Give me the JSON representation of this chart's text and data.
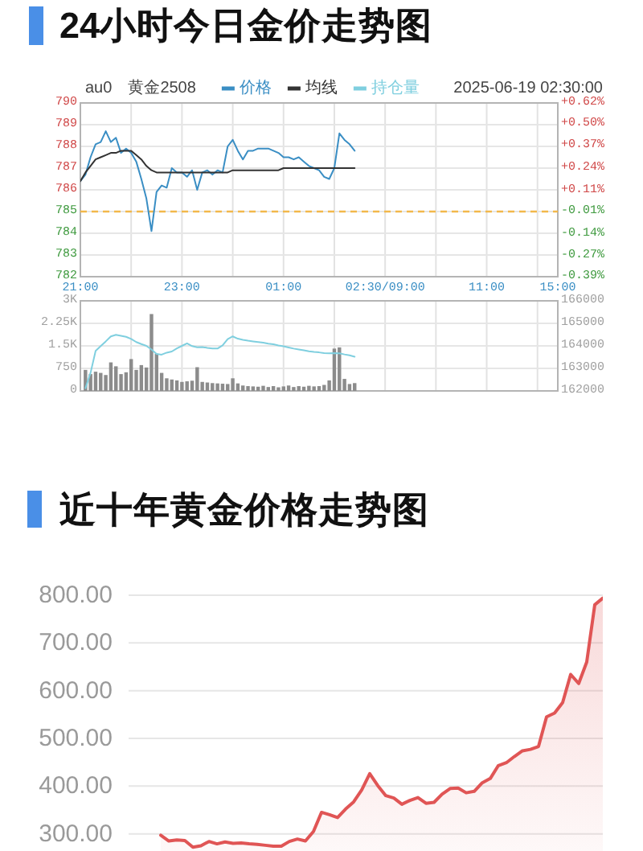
{
  "chart_data": [
    {
      "type": "line",
      "title": "24小时今日金价走势图",
      "annotations": [
        "au0",
        "黄金2508",
        "2025-06-19 02:30:00"
      ],
      "legend": "top",
      "grid": true,
      "categories": [
        "21:00",
        null,
        null,
        null,
        null,
        null,
        null,
        null,
        null,
        null,
        null,
        null,
        null,
        null,
        null,
        null,
        null,
        null,
        null,
        null,
        "23:00",
        null,
        null,
        null,
        null,
        null,
        null,
        null,
        null,
        null,
        null,
        null,
        null,
        null,
        null,
        null,
        null,
        null,
        null,
        null,
        "01:00",
        null,
        null,
        null,
        null,
        null,
        null,
        null,
        null,
        null,
        null,
        null,
        null,
        null,
        null,
        null,
        null,
        null,
        null,
        null,
        "02:30/09:00",
        null,
        null,
        null,
        null,
        null,
        null,
        null,
        null,
        null,
        null,
        null,
        null,
        null,
        null,
        null,
        null,
        null,
        null,
        null,
        "11:00",
        null,
        null,
        null,
        null,
        null,
        null,
        null,
        null,
        null,
        null,
        null,
        null,
        null,
        "15:00"
      ],
      "ylim": [
        782,
        790
      ],
      "yticks": [
        782,
        783,
        784,
        785,
        786,
        787,
        788,
        789,
        790
      ],
      "y2lim": [
        -0.39,
        0.62
      ],
      "y2ticks": [
        {
          "value": -0.39,
          "label": "-0.39%"
        },
        {
          "value": -0.27,
          "label": "-0.27%"
        },
        {
          "value": -0.14,
          "label": "-0.14%"
        },
        {
          "value": -0.01,
          "label": "-0.01%"
        },
        {
          "value": 0.11,
          "label": "+0.11%"
        },
        {
          "value": 0.24,
          "label": "+0.24%"
        },
        {
          "value": 0.37,
          "label": "+0.37%"
        },
        {
          "value": 0.5,
          "label": "+0.50%"
        },
        {
          "value": 0.62,
          "label": "+0.62%"
        }
      ],
      "ref_lines": [
        {
          "axis": "y",
          "value": 785,
          "color": "#f2b84b",
          "line_style": "dashed"
        }
      ],
      "series": [
        {
          "name": "价格",
          "color": "#3a8ec4",
          "values": [
            786.4,
            786.7,
            787.5,
            788.1,
            788.2,
            788.7,
            788.2,
            788.4,
            787.7,
            787.9,
            787.7,
            787.3,
            786.5,
            785.6,
            784.1,
            785.9,
            786.2,
            786.1,
            787.0,
            786.8,
            786.8,
            786.6,
            786.9,
            786.0,
            786.8,
            786.9,
            786.7,
            786.9,
            786.8,
            788.0,
            788.3,
            787.8,
            787.4,
            787.8,
            787.8,
            787.9,
            787.9,
            787.9,
            787.8,
            787.7,
            787.5,
            787.5,
            787.4,
            787.5,
            787.3,
            787.1,
            787.0,
            786.9,
            786.6,
            786.5,
            787.0,
            788.6,
            788.3,
            788.1,
            787.8,
            null,
            null,
            null,
            null,
            null,
            null,
            null,
            null,
            null,
            null,
            null,
            null,
            null,
            null,
            null,
            null,
            null,
            null,
            null,
            null,
            null,
            null,
            null,
            null,
            null,
            null,
            null,
            null,
            null,
            null,
            null,
            null,
            null,
            null,
            null,
            null,
            null,
            null,
            null,
            null
          ]
        },
        {
          "name": "均线",
          "color": "#333333",
          "values": [
            786.4,
            786.8,
            787.1,
            787.4,
            787.5,
            787.6,
            787.7,
            787.7,
            787.8,
            787.8,
            787.8,
            787.6,
            787.4,
            787.1,
            786.9,
            786.8,
            786.8,
            786.8,
            786.8,
            786.8,
            786.8,
            786.8,
            786.8,
            786.8,
            786.8,
            786.8,
            786.8,
            786.8,
            786.8,
            786.8,
            786.9,
            786.9,
            786.9,
            786.9,
            786.9,
            786.9,
            786.9,
            786.9,
            786.9,
            786.9,
            787.0,
            787.0,
            787.0,
            787.0,
            787.0,
            787.0,
            787.0,
            787.0,
            787.0,
            787.0,
            787.0,
            787.0,
            787.0,
            787.0,
            787.0,
            null,
            null,
            null,
            null,
            null,
            null,
            null,
            null,
            null,
            null,
            null,
            null,
            null,
            null,
            null,
            null,
            null,
            null,
            null,
            null,
            null,
            null,
            null,
            null,
            null,
            null,
            null,
            null,
            null,
            null,
            null,
            null,
            null,
            null,
            null,
            null,
            null,
            null,
            null,
            null
          ]
        }
      ]
    },
    {
      "type": "bar",
      "legend": "top",
      "grid": true,
      "tick_labels": "y",
      "categories": [
        null,
        null,
        null,
        null,
        null,
        null,
        null,
        null,
        null,
        null,
        null,
        null,
        null,
        null,
        null,
        null,
        null,
        null,
        null,
        null,
        null,
        null,
        null,
        null,
        null,
        null,
        null,
        null,
        null,
        null,
        null,
        null,
        null,
        null,
        null,
        null,
        null,
        null,
        null,
        null,
        null,
        null,
        null,
        null,
        null,
        null,
        null,
        null,
        null,
        null,
        null,
        null,
        null,
        null,
        null,
        null,
        null,
        null,
        null,
        null,
        null,
        null,
        null,
        null,
        null,
        null,
        null,
        null,
        null,
        null,
        null,
        null,
        null,
        null,
        null,
        null,
        null,
        null,
        null,
        null,
        null,
        null,
        null,
        null,
        null,
        null,
        null,
        null,
        null,
        null,
        null,
        null,
        null,
        null,
        null
      ],
      "ylim": [
        0,
        3000
      ],
      "yticks": [
        0,
        750,
        {
          "value": 1500,
          "label": "1.5K"
        },
        {
          "value": 2250,
          "label": "2.25K"
        },
        {
          "value": 3000,
          "label": "3K"
        }
      ],
      "y2lim": [
        162000,
        166000
      ],
      "y2ticks": [
        162000,
        163000,
        164000,
        165000,
        166000
      ],
      "series": [
        {
          "color": "#8c8c8c",
          "values": [
            null,
            700,
            560,
            640,
            600,
            530,
            950,
            820,
            560,
            620,
            1060,
            700,
            860,
            780,
            2560,
            1240,
            600,
            420,
            380,
            350,
            300,
            320,
            340,
            790,
            300,
            280,
            260,
            250,
            240,
            230,
            420,
            250,
            180,
            160,
            150,
            140,
            170,
            130,
            160,
            120,
            150,
            180,
            130,
            160,
            140,
            170,
            150,
            160,
            200,
            350,
            1410,
            1450,
            400,
            230,
            260,
            null,
            null,
            null,
            null,
            null,
            null,
            null,
            null,
            null,
            null,
            null,
            null,
            null,
            null,
            null,
            null,
            null,
            null,
            null,
            null,
            null,
            null,
            null,
            null,
            null,
            null,
            null,
            null,
            null,
            null,
            null,
            null,
            null,
            null,
            null,
            null,
            null,
            null,
            null,
            null
          ]
        },
        {
          "name": "持仓量",
          "type": "line",
          "axis": "y2",
          "color": "#7fcfdf",
          "values": [
            null,
            162120,
            162800,
            163780,
            163990,
            164200,
            164420,
            164490,
            164450,
            164400,
            164310,
            164170,
            164080,
            164000,
            163840,
            163640,
            163610,
            163700,
            163750,
            163890,
            164000,
            164110,
            163990,
            163940,
            163950,
            163910,
            163880,
            163880,
            164020,
            164300,
            164420,
            164320,
            164270,
            164230,
            164200,
            164170,
            164140,
            164100,
            164070,
            164020,
            163980,
            163930,
            163880,
            163840,
            163800,
            163760,
            163730,
            163710,
            163680,
            163670,
            163680,
            163670,
            163620,
            163580,
            163520,
            null,
            null,
            null,
            null,
            null,
            null,
            null,
            null,
            null,
            null,
            null,
            null,
            null,
            null,
            null,
            null,
            null,
            null,
            null,
            null,
            null,
            null,
            null,
            null,
            null,
            null,
            null,
            null,
            null,
            null,
            null,
            null,
            null,
            null,
            null,
            null,
            null,
            null,
            null,
            null
          ]
        }
      ]
    },
    {
      "type": "area",
      "title": "近十年黄金价格走势图",
      "grid": "y",
      "tick_labels": "y",
      "color": "#e05555",
      "categories": [
        null,
        null,
        null,
        null,
        null,
        null,
        null,
        null,
        null,
        null,
        null,
        null,
        null,
        null,
        null,
        null,
        null,
        null,
        null,
        null,
        null,
        null,
        null,
        null,
        null,
        null,
        null,
        null,
        null,
        null,
        null,
        null,
        null,
        null,
        null,
        null,
        null,
        null,
        null,
        null,
        null,
        null,
        null,
        null,
        null,
        null,
        null,
        null,
        null,
        null,
        null,
        null,
        null,
        null,
        null,
        null,
        null,
        null,
        null,
        null
      ],
      "values": [
        null,
        null,
        null,
        null,
        297,
        285,
        287,
        286,
        272,
        275,
        284,
        279,
        283,
        280,
        281,
        279,
        278,
        276,
        274,
        274,
        284,
        289,
        285,
        305,
        345,
        340,
        334,
        352,
        367,
        392,
        426,
        401,
        380,
        375,
        362,
        370,
        376,
        364,
        366,
        383,
        395,
        396,
        386,
        389,
        407,
        416,
        443,
        449,
        462,
        474,
        477,
        483,
        545,
        553,
        575,
        634,
        615,
        660,
        780,
        794
      ],
      "ylim": [
        264,
        800
      ],
      "yticks": [
        {
          "value": 300,
          "label": "300.00"
        },
        {
          "value": 400,
          "label": "400.00"
        },
        {
          "value": 500,
          "label": "500.00"
        },
        {
          "value": 600,
          "label": "600.00"
        },
        {
          "value": 700,
          "label": "700.00"
        },
        {
          "value": 800,
          "label": "800.00"
        }
      ]
    }
  ]
}
